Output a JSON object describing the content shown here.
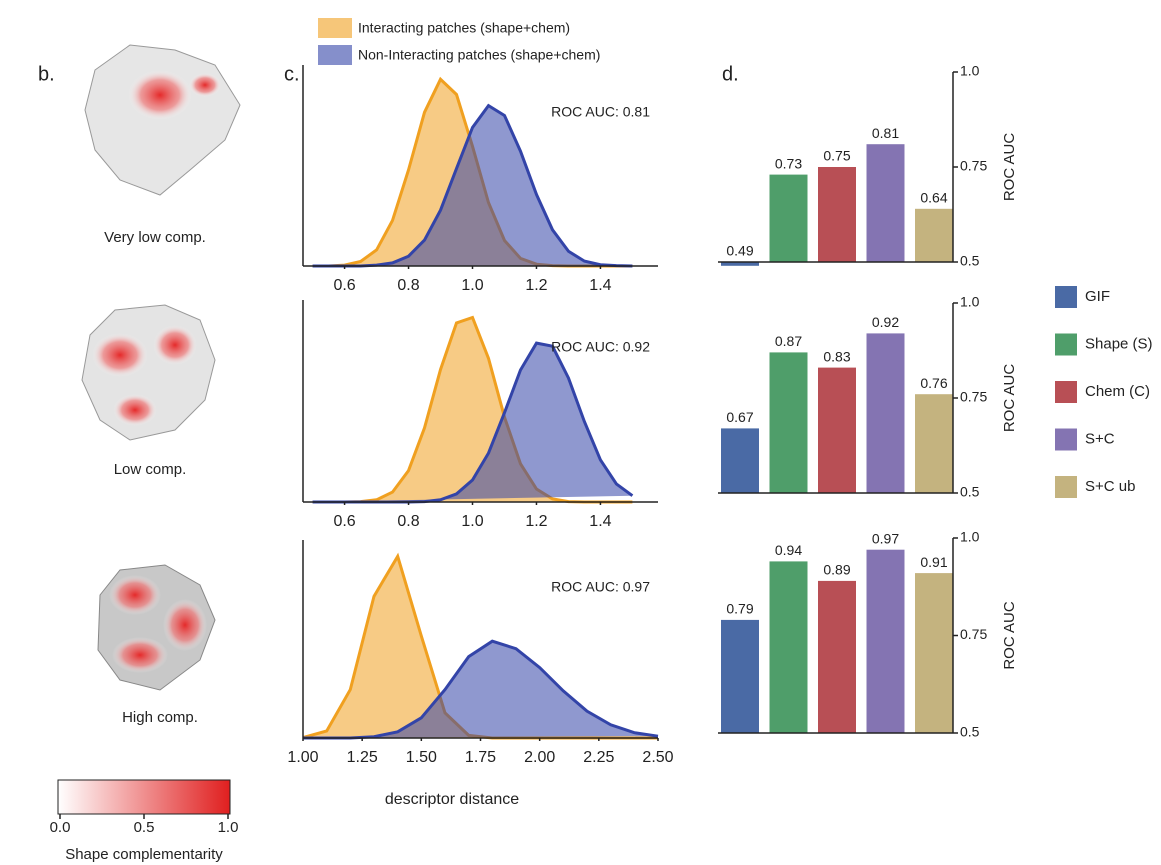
{
  "panel_b": {
    "label": "b.",
    "captions": [
      "Very low comp.",
      "Low comp.",
      "High comp."
    ],
    "colorbar": {
      "ticks": [
        {
          "value": 0,
          "label": "0.0"
        },
        0.5,
        {
          "value": 1,
          "label": "1.0"
        }
      ],
      "title": "Shape complementarity"
    }
  },
  "chart_data": [
    {
      "type": "density",
      "label": "c.",
      "annotation": "ROC AUC: 0.81",
      "x": [
        0.5,
        0.55,
        0.6,
        0.65,
        0.7,
        0.75,
        0.8,
        0.85,
        0.9,
        0.95,
        1.0,
        1.05,
        1.1,
        1.15,
        1.2,
        1.25,
        1.3,
        1.35,
        1.4,
        1.45,
        1.5
      ],
      "series": [
        {
          "name": "Interacting patches (shape+chem)",
          "color": "#f0a020",
          "values": [
            0,
            0,
            0.02,
            0.1,
            0.36,
            1.02,
            2.15,
            3.44,
            4.18,
            3.84,
            2.68,
            1.42,
            0.57,
            0.17,
            0.04,
            0.01,
            0,
            0,
            0,
            0,
            0
          ]
        },
        {
          "name": "Non-Interacting patches (shape+chem)",
          "color": "#3344a8",
          "values": [
            0,
            0,
            0,
            0,
            0.02,
            0.07,
            0.22,
            0.58,
            1.25,
            2.18,
            3.1,
            3.59,
            3.37,
            2.57,
            1.6,
            0.81,
            0.33,
            0.11,
            0.03,
            0.01,
            0
          ]
        }
      ],
      "xlim": [
        0.47,
        1.58
      ],
      "xticks": [
        0.6,
        0.8,
        {
          "value": 1,
          "label": "1.0"
        },
        1.2,
        1.4
      ],
      "ylim": [
        0,
        4.5
      ]
    },
    {
      "type": "density",
      "annotation": "ROC AUC: 0.92",
      "x": [
        0.5,
        0.55,
        0.6,
        0.65,
        0.7,
        0.75,
        0.8,
        0.85,
        0.9,
        0.95,
        1.0,
        1.05,
        1.1,
        1.15,
        1.2,
        1.25,
        1.3,
        1.35,
        1.4,
        1.45,
        1.5
      ],
      "series": [
        {
          "color": "#f0a020",
          "values": [
            0,
            0,
            0,
            0.01,
            0.05,
            0.22,
            0.7,
            1.65,
            2.95,
            3.99,
            4.11,
            3.2,
            1.89,
            0.85,
            0.29,
            0.07,
            0.01,
            0,
            0,
            0,
            0
          ]
        },
        {
          "color": "#3344a8",
          "values": [
            0,
            0,
            0,
            0,
            0,
            0,
            0,
            0.01,
            0.05,
            0.18,
            0.49,
            1.09,
            1.99,
            2.94,
            3.54,
            3.47,
            2.76,
            1.79,
            0.94,
            0.4,
            0.14
          ]
        }
      ],
      "xlim": [
        0.47,
        1.58
      ],
      "xticks": [
        0.6,
        0.8,
        {
          "value": 1,
          "label": "1.0"
        },
        1.2,
        1.4
      ],
      "ylim": [
        0,
        4.5
      ]
    },
    {
      "type": "density",
      "annotation": "ROC AUC: 0.97",
      "xlabel": "descriptor distance",
      "x": [
        1.0,
        1.1,
        1.2,
        1.3,
        1.4,
        1.5,
        1.6,
        1.7,
        1.8,
        1.9,
        2.0,
        2.1,
        2.2,
        2.3,
        2.4,
        2.5
      ],
      "series": [
        {
          "color": "#f0a020",
          "values": [
            0.01,
            0.16,
            1.1,
            3.22,
            4.13,
            2.32,
            0.57,
            0.06,
            0,
            0,
            0,
            0,
            0,
            0,
            0,
            0
          ]
        },
        {
          "color": "#3344a8",
          "values": [
            0,
            0,
            0,
            0.03,
            0.14,
            0.46,
            1.1,
            1.85,
            2.2,
            2.03,
            1.6,
            1.07,
            0.61,
            0.3,
            0.12,
            0.04
          ]
        }
      ],
      "xlim": [
        1.0,
        2.5
      ],
      "xticks": [
        {
          "value": 1,
          "label": "1.00"
        },
        {
          "value": 1.25,
          "label": "1.25"
        },
        {
          "value": 1.5,
          "label": "1.50"
        },
        {
          "value": 1.75,
          "label": "1.75"
        },
        {
          "value": 2,
          "label": "2.00"
        },
        {
          "value": 2.25,
          "label": "2.25"
        },
        {
          "value": 2.5,
          "label": "2.50"
        }
      ],
      "ylim": [
        0,
        4.5
      ]
    },
    {
      "type": "bar",
      "label": "d.",
      "ylabel": "ROC AUC",
      "series": [
        {
          "color": "#4a6aa5",
          "values": [
            0.49
          ]
        },
        {
          "color": "#4f9e6a",
          "values": [
            0.73
          ]
        },
        {
          "color": "#b84f55",
          "values": [
            0.75
          ]
        },
        {
          "color": "#8474b2",
          "values": [
            0.81
          ]
        },
        {
          "color": "#c4b37f",
          "values": [
            0.64
          ]
        }
      ],
      "ylim": [
        0.5,
        1.0
      ],
      "yticks": [
        0.5,
        0.75,
        {
          "value": 1,
          "label": "1.0"
        }
      ]
    },
    {
      "type": "bar",
      "ylabel": "ROC AUC",
      "series": [
        {
          "name": "GIF",
          "color": "#4a6aa5",
          "values": [
            0.67
          ]
        },
        {
          "name": "Shape (S)",
          "color": "#4f9e6a",
          "values": [
            0.87
          ]
        },
        {
          "name": "Chem (C)",
          "color": "#b84f55",
          "values": [
            0.83
          ]
        },
        {
          "name": "S+C",
          "color": "#8474b2",
          "values": [
            0.92
          ]
        },
        {
          "name": "S+C ub",
          "color": "#c4b37f",
          "values": [
            0.76
          ]
        }
      ],
      "ylim": [
        0.5,
        1.0
      ],
      "yticks": [
        0.5,
        0.75,
        {
          "value": 1,
          "label": "1.0"
        }
      ]
    },
    {
      "type": "bar",
      "ylabel": "ROC AUC",
      "series": [
        {
          "color": "#4a6aa5",
          "values": [
            0.79
          ]
        },
        {
          "color": "#4f9e6a",
          "values": [
            0.94
          ]
        },
        {
          "color": "#b84f55",
          "values": [
            0.89
          ]
        },
        {
          "color": "#8474b2",
          "values": [
            0.97
          ]
        },
        {
          "color": "#c4b37f",
          "values": [
            0.91
          ]
        }
      ],
      "ylim": [
        0.5,
        1.0
      ],
      "yticks": [
        0.5,
        0.75,
        {
          "value": 1,
          "label": "1.0"
        }
      ]
    }
  ]
}
